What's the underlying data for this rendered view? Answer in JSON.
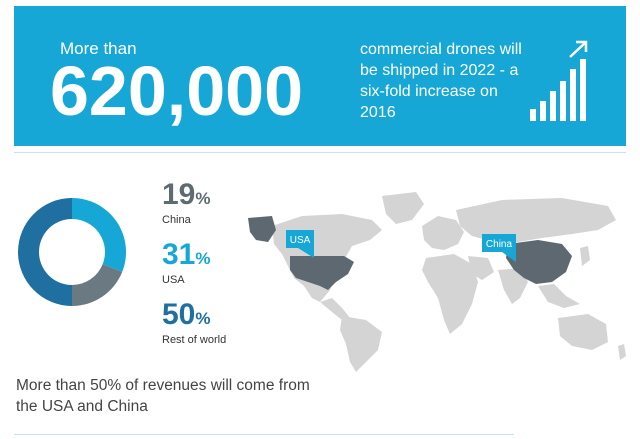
{
  "banner": {
    "pre_label": "More than",
    "big_number": "620,000",
    "description": "commercial drones will be shipped in 2022 - a six-fold increase on 2016",
    "icon": "growth-bar-chart-icon"
  },
  "chart_data": {
    "type": "pie",
    "categories": [
      "China",
      "USA",
      "Rest of world"
    ],
    "values": [
      19,
      31,
      50
    ],
    "display_values": [
      "19",
      "31",
      "50"
    ],
    "unit": "%",
    "colors": [
      "#6b7a82",
      "#17a7d6",
      "#1f6fa0"
    ]
  },
  "map": {
    "callouts": [
      {
        "label": "USA"
      },
      {
        "label": "China"
      }
    ],
    "highlight_color": "#5d6870",
    "land_color": "#d4d4d4",
    "callout_color": "#17a7d6"
  },
  "footnote": "More than 50% of revenues will come from the USA and China"
}
